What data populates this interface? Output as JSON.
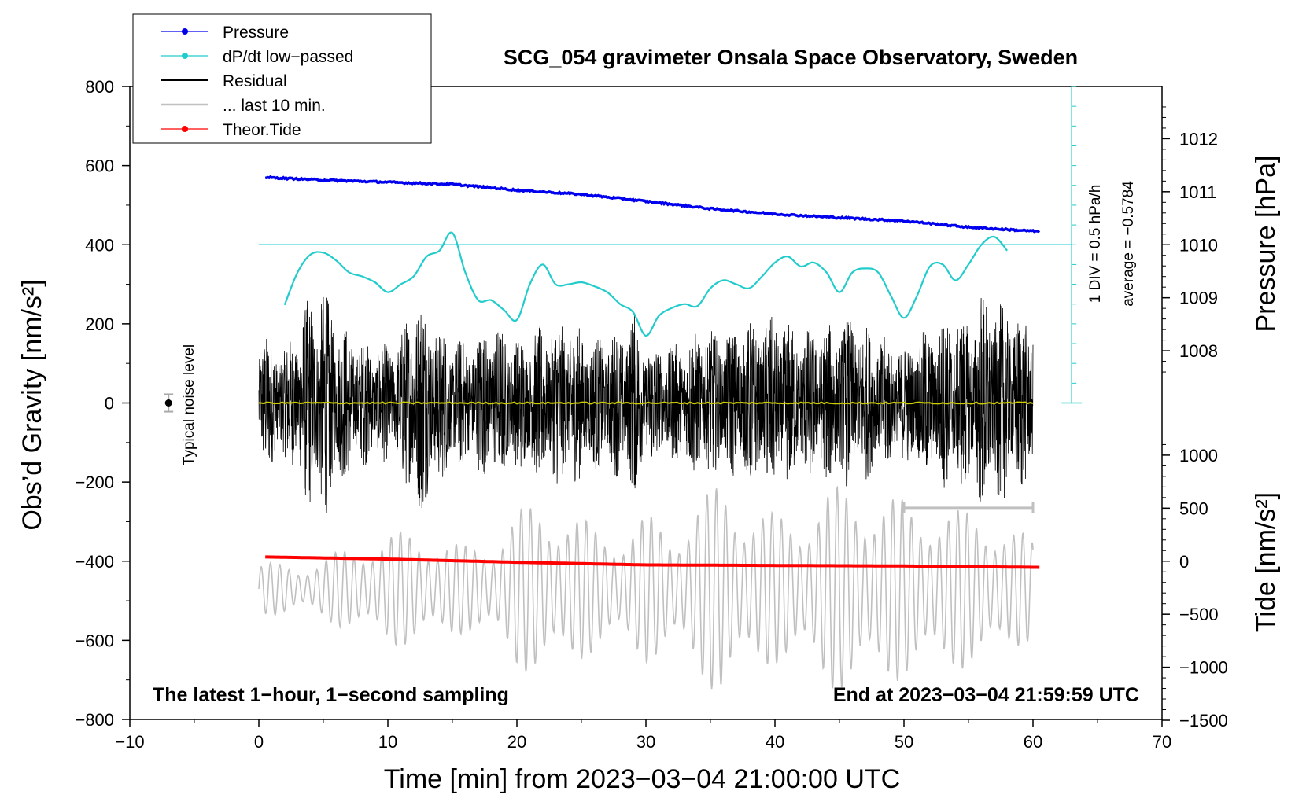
{
  "chart_data": {
    "type": "line",
    "title": "SCG_054 gravimeter Onsala Space Observatory, Sweden",
    "xlabel": "Time [min] from 2023−03−04 21:00:00 UTC",
    "ylabel_left": "Obs’d Gravity [nm/s²]",
    "ylabel_right_top": "Pressure [hPa]",
    "ylabel_right_bottom": "Tide [nm/s²]",
    "xlim": [
      -10,
      70
    ],
    "ylim_left": [
      -800,
      800
    ],
    "x_ticks": [
      -10,
      0,
      10,
      20,
      30,
      40,
      50,
      60,
      70
    ],
    "x_tick_labels": [
      "−10",
      "0",
      "10",
      "20",
      "30",
      "40",
      "50",
      "60",
      "70"
    ],
    "y_ticks_left": [
      800,
      600,
      400,
      200,
      0,
      -200,
      -400,
      -600,
      -800
    ],
    "y_tick_labels_left": [
      "800",
      "600",
      "400",
      "200",
      "0",
      "−200",
      "−400",
      "−600",
      "−800"
    ],
    "pressure_axis": {
      "ticks": [
        1012,
        1011,
        1010,
        1009,
        1008
      ],
      "tick_labels": [
        "1012",
        "1011",
        "1010",
        "1009",
        "1008"
      ],
      "gravity_at_1010": 400,
      "gravity_per_hPa": 134
    },
    "tide_axis": {
      "ticks": [
        1000,
        500,
        0,
        -500,
        -1000,
        -1500
      ],
      "tick_labels": [
        "1000",
        "500",
        "0",
        "−500",
        "−1000",
        "−1500"
      ],
      "gravity_at_0": -400,
      "gravity_per_nm": 0.268
    },
    "legend": {
      "entries": [
        {
          "label": "Pressure",
          "color": "#0000ee",
          "marker": true
        },
        {
          "label": "dP/dt low−passed",
          "color": "#22cccc",
          "marker": true
        },
        {
          "label": "Residual",
          "color": "#000000",
          "marker": false
        },
        {
          "label": "... last 10 min.",
          "color": "#c0c0c0",
          "marker": false
        },
        {
          "label": "Theor.Tide",
          "color": "#ff0000",
          "marker": true
        }
      ]
    },
    "series": [
      {
        "name": "Pressure",
        "unit": "hPa",
        "color": "#0000ee",
        "x": [
          0.5,
          5,
          10,
          15,
          20,
          25,
          30,
          35,
          40,
          45,
          50,
          55,
          60.5
        ],
        "values": [
          1011.27,
          1011.22,
          1011.18,
          1011.14,
          1011.03,
          1010.95,
          1010.82,
          1010.68,
          1010.58,
          1010.51,
          1010.45,
          1010.33,
          1010.25
        ]
      },
      {
        "name": "dP/dt low−passed",
        "unit": "hPa/h",
        "color": "#22cccc",
        "divisor_label": "1 DIV = 0.5 hPa/h",
        "average_label": "average = −0.5784",
        "reference_line_gravity": 400,
        "x": [
          2,
          3,
          4,
          5,
          6,
          7,
          8,
          9,
          10,
          11,
          12,
          13,
          14,
          15,
          16,
          17,
          18,
          19,
          20,
          21,
          22,
          23,
          24,
          25,
          26,
          27,
          28,
          29,
          30,
          31,
          32,
          33,
          34,
          35,
          36,
          37,
          38,
          39,
          40,
          41,
          42,
          43,
          44,
          45,
          46,
          47,
          48,
          49,
          50,
          51,
          52,
          53,
          54,
          55,
          56,
          57,
          58
        ],
        "values": [
          248,
          330,
          375,
          380,
          360,
          330,
          320,
          305,
          280,
          300,
          320,
          370,
          385,
          430,
          330,
          260,
          260,
          235,
          210,
          300,
          350,
          300,
          300,
          305,
          295,
          280,
          250,
          230,
          170,
          220,
          240,
          250,
          245,
          290,
          310,
          300,
          290,
          320,
          355,
          370,
          345,
          355,
          330,
          280,
          330,
          340,
          330,
          270,
          215,
          270,
          345,
          350,
          310,
          350,
          400,
          420,
          385
        ]
      },
      {
        "name": "Residual",
        "unit": "nm/s²",
        "color": "#000000",
        "x_range": [
          0,
          60
        ],
        "envelope": {
          "x": [
            0,
            2,
            4,
            5,
            6,
            8,
            10,
            11,
            12,
            12.5,
            14,
            16,
            18,
            20,
            22,
            24,
            26,
            28,
            29,
            30,
            32,
            34,
            36,
            38,
            40,
            42,
            44,
            46,
            48,
            50,
            52,
            54,
            55,
            56,
            57,
            58,
            59,
            60
          ],
          "values": [
            190,
            140,
            280,
            300,
            220,
            160,
            150,
            180,
            280,
            290,
            200,
            160,
            210,
            170,
            200,
            220,
            170,
            190,
            240,
            160,
            150,
            190,
            180,
            210,
            230,
            190,
            200,
            220,
            180,
            150,
            200,
            230,
            210,
            290,
            260,
            250,
            230,
            220
          ]
        }
      },
      {
        "name": "... last 10 min.",
        "unit": "nm/s²",
        "color": "#c0c0c0",
        "x_range": [
          0,
          60
        ],
        "center_gravity": -470,
        "envelope": {
          "x": [
            0,
            3,
            5,
            8,
            10,
            12,
            14,
            16,
            18,
            20,
            22,
            24,
            26,
            28,
            30,
            32,
            34,
            35,
            36,
            37,
            38,
            40,
            42,
            44,
            46,
            48,
            50,
            52,
            54,
            56,
            58,
            60
          ],
          "values": [
            70,
            60,
            80,
            120,
            140,
            150,
            130,
            110,
            130,
            200,
            230,
            200,
            160,
            150,
            190,
            160,
            230,
            250,
            280,
            250,
            220,
            190,
            200,
            250,
            270,
            240,
            230,
            220,
            200,
            210,
            160,
            130
          ]
        },
        "range_bar": {
          "x": [
            50,
            60
          ],
          "gravity": -265
        }
      },
      {
        "name": "Theor.Tide",
        "unit": "nm/s²",
        "color": "#ff0000",
        "x": [
          0.5,
          10,
          20,
          30,
          40,
          50,
          60.5
        ],
        "values": [
          40,
          20,
          -10,
          -35,
          -40,
          -45,
          -58
        ]
      }
    ],
    "noise_marker": {
      "x": -7,
      "y": 0,
      "err": 22,
      "label": "Typical noise level"
    },
    "annotations": {
      "bottom_left": "The latest 1−hour, 1−second sampling",
      "bottom_right": "End at 2023−03−04 21:59:59 UTC"
    }
  }
}
